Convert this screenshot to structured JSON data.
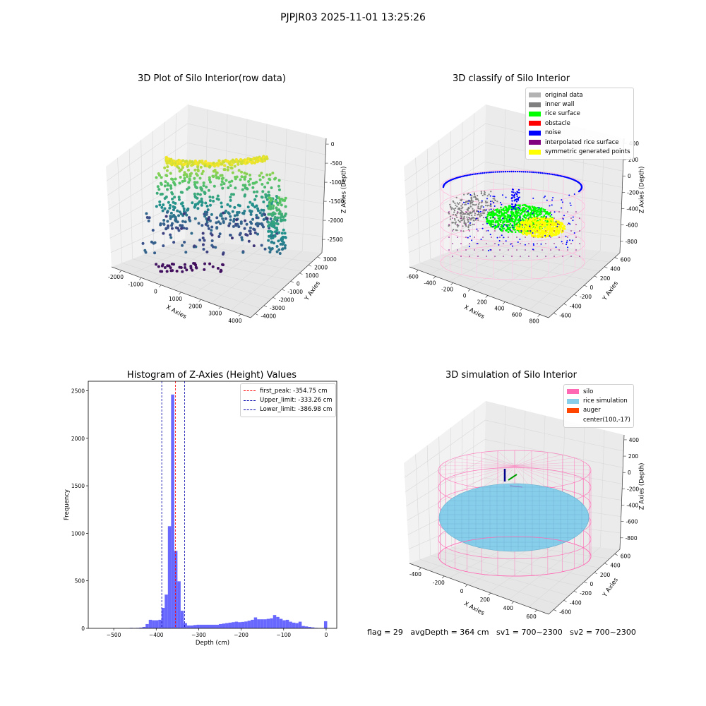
{
  "suptitle": "PJPJR03 2025-11-01 13:25:26",
  "footer": "flag = 29   avgDepth = 364 cm   sv1 = 700~2300   sv2 = 700~2300",
  "colors": {
    "hist_bar": "#4d4dff",
    "first_peak": "#ff0000",
    "limits": "#0000aa",
    "pane": "#f2f2f2",
    "grid": "#d9d9d9"
  },
  "panel1": {
    "title": "3D Plot of Silo Interior(row data)",
    "xlabel": "X Axies",
    "ylabel": "Y Axies",
    "zlabel": "Z Axies (Depth)",
    "xticks": [
      "-2000",
      "-1000",
      "0",
      "1000",
      "2000",
      "3000",
      "4000"
    ],
    "yticks": [
      "-4000",
      "-3000",
      "-2000",
      "-1000",
      "0",
      "1000",
      "2000",
      "3000"
    ],
    "zticks": [
      "0",
      "-500",
      "-1000",
      "-1500",
      "-2000",
      "-2500"
    ],
    "colormap": "viridis"
  },
  "panel2": {
    "title": "3D classify of Silo Interior",
    "xlabel": "X Axies",
    "ylabel": "Y Axies",
    "zlabel": "Z Axies (Depth)",
    "xticks": [
      "-600",
      "-400",
      "-200",
      "0",
      "200",
      "400",
      "600",
      "800"
    ],
    "yticks": [
      "-600",
      "-400",
      "-200",
      "0",
      "200",
      "400",
      "600"
    ],
    "zticks": [
      "400",
      "200",
      "0",
      "-200",
      "-400",
      "-600",
      "-800"
    ],
    "legend": [
      {
        "label": "original data",
        "color": "#b3b3b3"
      },
      {
        "label": "inner wall",
        "color": "#808080"
      },
      {
        "label": "rice surface",
        "color": "#00ff00"
      },
      {
        "label": "obstacle",
        "color": "#ff0000"
      },
      {
        "label": "noise",
        "color": "#0000ff"
      },
      {
        "label": "interpolated rice surface",
        "color": "#800080"
      },
      {
        "label": "symmetric generated points",
        "color": "#ffff00"
      }
    ]
  },
  "panel3": {
    "chart_data": {
      "type": "bar",
      "title": "Histogram of Z-Axies (Height) Values",
      "xlabel": "Depth (cm)",
      "ylabel": "Frequency",
      "xlim": [
        -560,
        25
      ],
      "ylim": [
        0,
        2600
      ],
      "xticks": [
        -500,
        -400,
        -300,
        -200,
        -100,
        0
      ],
      "yticks": [
        0,
        500,
        1000,
        1500,
        2000,
        2500
      ],
      "bin_width": 7.5,
      "bins": [
        {
          "x0": -462.5,
          "count": 5
        },
        {
          "x0": -455.0,
          "count": 3
        },
        {
          "x0": -447.5,
          "count": 5
        },
        {
          "x0": -440.0,
          "count": 8
        },
        {
          "x0": -432.5,
          "count": 15
        },
        {
          "x0": -425.0,
          "count": 45
        },
        {
          "x0": -417.5,
          "count": 90
        },
        {
          "x0": -410.0,
          "count": 85
        },
        {
          "x0": -402.5,
          "count": 85
        },
        {
          "x0": -395.0,
          "count": 90
        },
        {
          "x0": -387.5,
          "count": 215
        },
        {
          "x0": -380.0,
          "count": 355
        },
        {
          "x0": -372.5,
          "count": 1075
        },
        {
          "x0": -365.0,
          "count": 2460
        },
        {
          "x0": -357.5,
          "count": 815
        },
        {
          "x0": -350.0,
          "count": 495
        },
        {
          "x0": -342.5,
          "count": 185
        },
        {
          "x0": -335.0,
          "count": 55
        },
        {
          "x0": -327.5,
          "count": 30
        },
        {
          "x0": -320.0,
          "count": 30
        },
        {
          "x0": -312.5,
          "count": 35
        },
        {
          "x0": -305.0,
          "count": 38
        },
        {
          "x0": -297.5,
          "count": 38
        },
        {
          "x0": -290.0,
          "count": 38
        },
        {
          "x0": -282.5,
          "count": 38
        },
        {
          "x0": -275.0,
          "count": 38
        },
        {
          "x0": -267.5,
          "count": 38
        },
        {
          "x0": -260.0,
          "count": 38
        },
        {
          "x0": -252.5,
          "count": 45
        },
        {
          "x0": -245.0,
          "count": 50
        },
        {
          "x0": -237.5,
          "count": 55
        },
        {
          "x0": -230.0,
          "count": 60
        },
        {
          "x0": -222.5,
          "count": 65
        },
        {
          "x0": -215.0,
          "count": 70
        },
        {
          "x0": -207.5,
          "count": 65
        },
        {
          "x0": -200.0,
          "count": 68
        },
        {
          "x0": -192.5,
          "count": 72
        },
        {
          "x0": -185.0,
          "count": 80
        },
        {
          "x0": -177.5,
          "count": 90
        },
        {
          "x0": -170.0,
          "count": 115
        },
        {
          "x0": -162.5,
          "count": 95
        },
        {
          "x0": -155.0,
          "count": 95
        },
        {
          "x0": -147.5,
          "count": 95
        },
        {
          "x0": -140.0,
          "count": 100
        },
        {
          "x0": -132.5,
          "count": 105
        },
        {
          "x0": -125.0,
          "count": 140
        },
        {
          "x0": -117.5,
          "count": 120
        },
        {
          "x0": -110.0,
          "count": 100
        },
        {
          "x0": -102.5,
          "count": 85
        },
        {
          "x0": -95.0,
          "count": 90
        },
        {
          "x0": -87.5,
          "count": 70
        },
        {
          "x0": -80.0,
          "count": 60
        },
        {
          "x0": -72.5,
          "count": 55
        },
        {
          "x0": -65.0,
          "count": 70
        },
        {
          "x0": -57.5,
          "count": 25
        },
        {
          "x0": -50.0,
          "count": 20
        },
        {
          "x0": -42.5,
          "count": 15
        },
        {
          "x0": -35.0,
          "count": 10
        },
        {
          "x0": -27.5,
          "count": 5
        },
        {
          "x0": -20.0,
          "count": 3
        },
        {
          "x0": -12.5,
          "count": 2
        },
        {
          "x0": -5.0,
          "count": 75
        }
      ],
      "vlines": [
        {
          "label": "first_peak: -354.75 cm",
          "x": -354.75,
          "color": "#ff0000"
        },
        {
          "label": "Upper_limit: -333.26 cm",
          "x": -333.26,
          "color": "#0000aa"
        },
        {
          "label": "Lower_limit: -386.98 cm",
          "x": -386.98,
          "color": "#0000aa"
        }
      ],
      "legend_loc": "upper right"
    }
  },
  "panel4": {
    "title": "3D simulation of Silo Interior",
    "xlabel": "X Axies",
    "ylabel": "Y Axies",
    "zlabel": "Z Axies (Depth)",
    "xticks": [
      "-400",
      "-200",
      "0",
      "200",
      "400",
      "600"
    ],
    "yticks": [
      "-600",
      "-400",
      "-200",
      "0",
      "200",
      "400",
      "600"
    ],
    "zticks": [
      "400",
      "200",
      "0",
      "-200",
      "-400",
      "-600",
      "-800"
    ],
    "legend": [
      {
        "label": "silo",
        "color": "#ff69b4"
      },
      {
        "label": "rice simulation",
        "color": "#87ceeb"
      },
      {
        "label": "auger",
        "color": "#ff4500"
      },
      {
        "label": "center(100,-17)",
        "color": ""
      }
    ]
  }
}
